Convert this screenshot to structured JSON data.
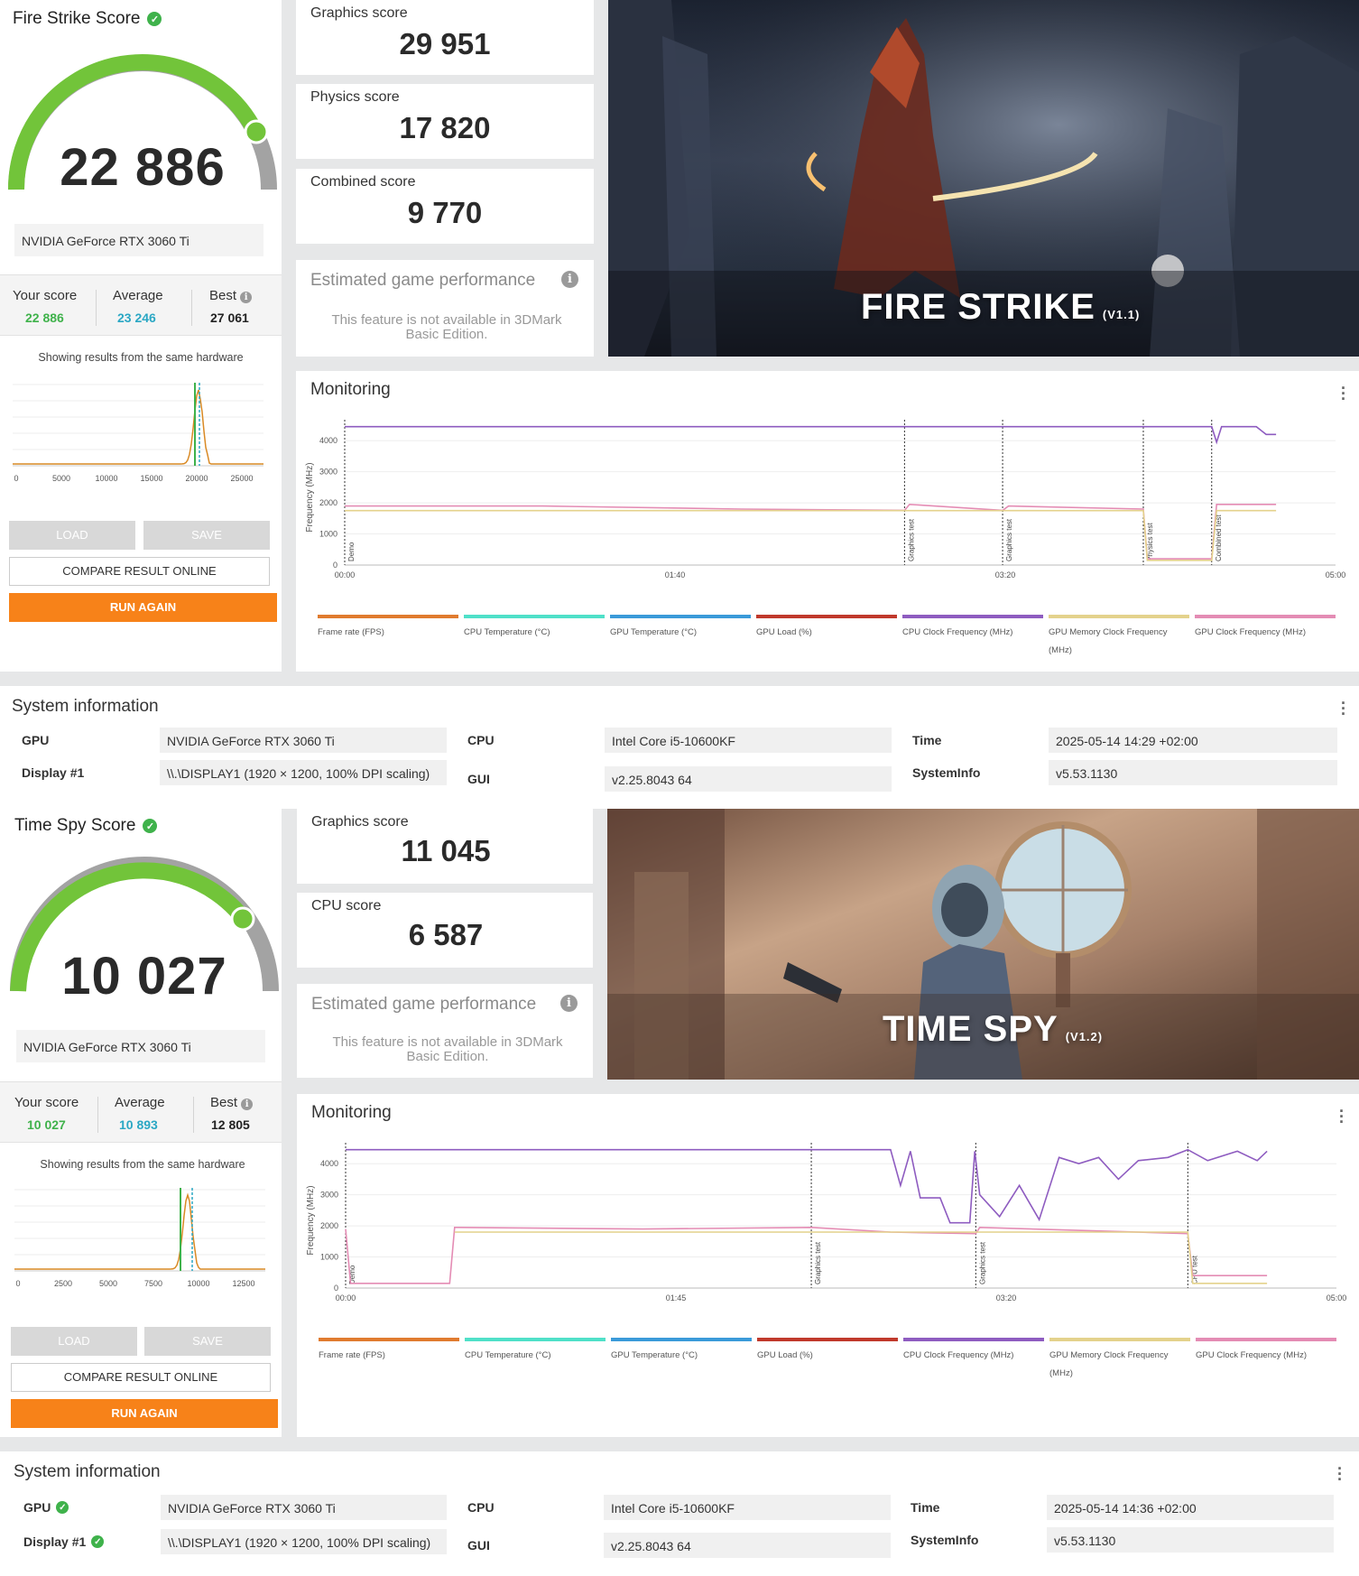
{
  "fire": {
    "score_title": "Fire Strike Score",
    "score": "22 886",
    "gpu": "NVIDIA GeForce RTX 3060 Ti",
    "your_score_label": "Your score",
    "your_score": "22 886",
    "average_label": "Average",
    "average": "23 246",
    "best_label": "Best",
    "best": "27 061",
    "showing": "Showing results from the same hardware",
    "dist_ticks": [
      "0",
      "5000",
      "10000",
      "15000",
      "20000",
      "25000"
    ],
    "load": "LOAD",
    "save": "SAVE",
    "compare": "COMPARE RESULT ONLINE",
    "run_again": "RUN AGAIN",
    "sub1_label": "Graphics score",
    "sub1_value": "29 951",
    "sub2_label": "Physics score",
    "sub2_value": "17 820",
    "sub3_label": "Combined score",
    "sub3_value": "9 770",
    "est_title": "Estimated game performance",
    "est_text": "This feature is not available in 3DMark Basic Edition.",
    "banner_title": "FIRE STRIKE",
    "banner_version": "(V1.1)",
    "monitoring": {
      "title": "Monitoring",
      "ylabel": "Frequency (MHz)",
      "yticks": [
        "0",
        "1000",
        "2000",
        "3000",
        "4000"
      ],
      "xticks": [
        "00:00",
        "01:40",
        "03:20",
        "05:00"
      ],
      "markers": [
        "Demo",
        "Graphics test",
        "Graphics test",
        "Physics test",
        "Combined test"
      ]
    },
    "sysinfo": {
      "title": "System information",
      "gpu_label": "GPU",
      "gpu": "NVIDIA GeForce RTX 3060 Ti",
      "display_label": "Display #1",
      "display": "\\\\.\\DISPLAY1 (1920 × 1200, 100% DPI scaling)",
      "cpu_label": "CPU",
      "cpu": "Intel Core i5-10600KF",
      "gui_label": "GUI",
      "gui": "v2.25.8043 64",
      "time_label": "Time",
      "time": "2025-05-14 14:29 +02:00",
      "systeminfo_label": "SystemInfo",
      "systeminfo": "v5.53.1130"
    }
  },
  "timespy": {
    "score_title": "Time Spy Score",
    "score": "10 027",
    "gpu": "NVIDIA GeForce RTX 3060 Ti",
    "your_score_label": "Your score",
    "your_score": "10 027",
    "average_label": "Average",
    "average": "10 893",
    "best_label": "Best",
    "best": "12 805",
    "showing": "Showing results from the same hardware",
    "dist_ticks": [
      "0",
      "2500",
      "5000",
      "7500",
      "10000",
      "12500"
    ],
    "load": "LOAD",
    "save": "SAVE",
    "compare": "COMPARE RESULT ONLINE",
    "run_again": "RUN AGAIN",
    "sub1_label": "Graphics score",
    "sub1_value": "11 045",
    "sub2_label": "CPU score",
    "sub2_value": "6 587",
    "est_title": "Estimated game performance",
    "est_text": "This feature is not available in 3DMark Basic Edition.",
    "banner_title": "TIME SPY",
    "banner_version": "(V1.2)",
    "monitoring": {
      "title": "Monitoring",
      "ylabel": "Frequency (MHz)",
      "yticks": [
        "0",
        "1000",
        "2000",
        "3000",
        "4000"
      ],
      "xticks": [
        "00:00",
        "01:45",
        "03:20",
        "05:00"
      ],
      "markers": [
        "Demo",
        "Graphics test",
        "Graphics test",
        "CPU test"
      ]
    },
    "sysinfo": {
      "title": "System information",
      "gpu_label": "GPU",
      "gpu": "NVIDIA GeForce RTX 3060 Ti",
      "display_label": "Display #1",
      "display": "\\\\.\\DISPLAY1 (1920 × 1200, 100% DPI scaling)",
      "cpu_label": "CPU",
      "cpu": "Intel Core i5-10600KF",
      "gui_label": "GUI",
      "gui": "v2.25.8043 64",
      "time_label": "Time",
      "time": "2025-05-14 14:36 +02:00",
      "systeminfo_label": "SystemInfo",
      "systeminfo": "v5.53.1130"
    }
  },
  "legend": [
    {
      "label": "Frame rate (FPS)",
      "color": "#e07b2f"
    },
    {
      "label": "CPU Temperature (°C)",
      "color": "#4fe0c8"
    },
    {
      "label": "GPU Temperature (°C)",
      "color": "#3a9ad9"
    },
    {
      "label": "GPU Load (%)",
      "color": "#c0392b"
    },
    {
      "label": "CPU Clock Frequency (MHz)",
      "color": "#8e5cc0"
    },
    {
      "label": "GPU Memory Clock Frequency (MHz)",
      "color": "#e4d28c"
    },
    {
      "label": "GPU Clock Frequency (MHz)",
      "color": "#e48cb4"
    }
  ],
  "colors": {
    "accent_orange": "#f78219",
    "score_green": "#3fb24b",
    "average_blue": "#2aa7c4",
    "gauge_green": "#72c43a",
    "gauge_grey": "#a3a3a3"
  }
}
